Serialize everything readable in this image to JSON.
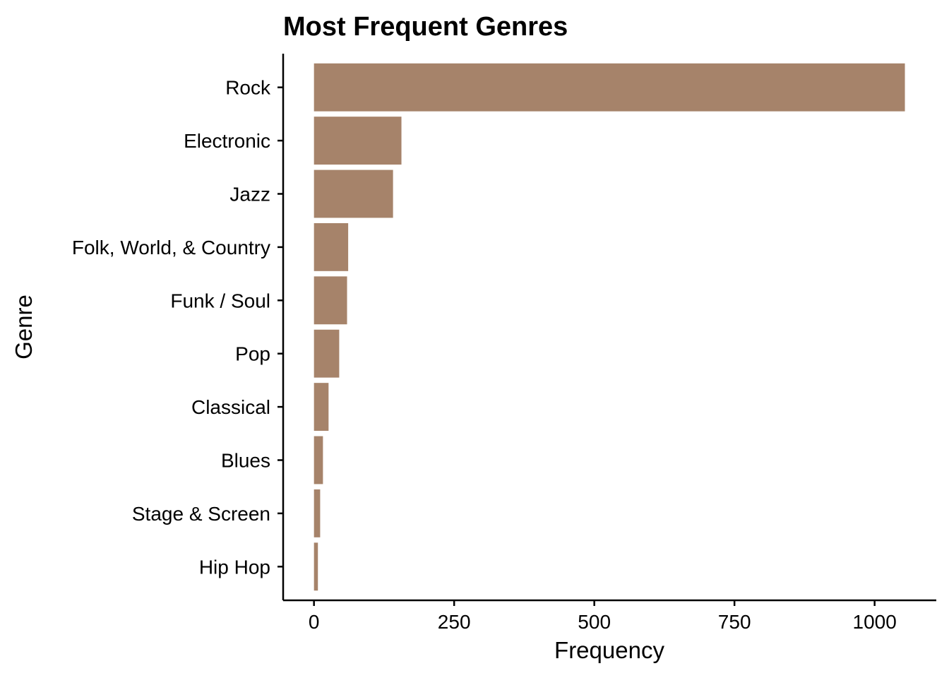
{
  "chart_data": {
    "type": "bar",
    "orientation": "horizontal",
    "title": "Most Frequent Genres",
    "xlabel": "Frequency",
    "ylabel": "Genre",
    "categories": [
      "Rock",
      "Electronic",
      "Jazz",
      "Folk, World, & Country",
      "Funk / Soul",
      "Pop",
      "Classical",
      "Blues",
      "Stage & Screen",
      "Hip Hop"
    ],
    "values": [
      1054,
      156,
      141,
      61,
      59,
      45,
      26,
      16,
      11,
      7
    ],
    "xlim": [
      -55,
      1110
    ],
    "xticks": [
      0,
      250,
      500,
      750,
      1000
    ],
    "xtick_labels": [
      "0",
      "250",
      "500",
      "750",
      "1000"
    ],
    "bar_color": "#a6836a",
    "grid": false,
    "legend": "none"
  }
}
